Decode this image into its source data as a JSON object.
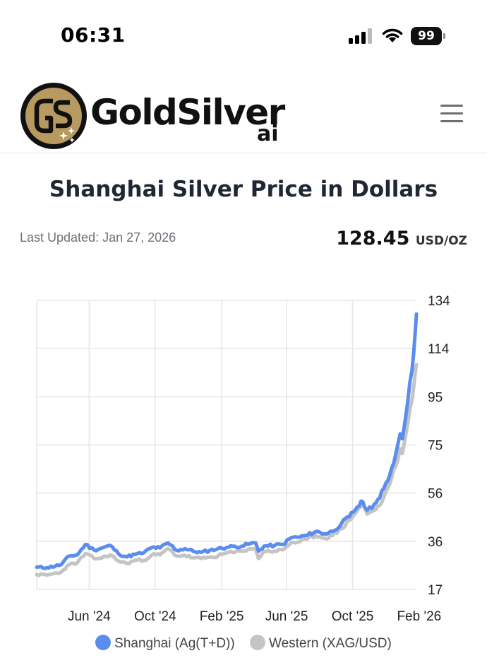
{
  "status_bar": {
    "time": "06:31",
    "battery": "99",
    "icons": [
      "signal-icon",
      "wifi-icon",
      "battery-icon"
    ]
  },
  "header": {
    "logo_text": "GoldSilver",
    "logo_sub": "ai",
    "menu_icon": "hamburger-menu-icon"
  },
  "page": {
    "title": "Shanghai Silver Price in Dollars",
    "last_updated": "Last Updated: Jan 27, 2026",
    "price_value": "128.45",
    "price_unit": "USD/OZ"
  },
  "colors": {
    "shanghai": "#5b8def",
    "western": "#c4c4c4",
    "grid": "#e6e6e6",
    "logo_gold": "#b79a5f"
  },
  "chart_data": {
    "type": "line",
    "y_axis_position": "right",
    "ylim": [
      17,
      134
    ],
    "yticks": [
      "134",
      "114",
      "95",
      "75",
      "56",
      "36",
      "17"
    ],
    "xlim": [
      "2024-02-25",
      "2026-01-27"
    ],
    "xticks": [
      {
        "label": "Jun '24",
        "date": "2024-06-01"
      },
      {
        "label": "Oct '24",
        "date": "2024-10-01"
      },
      {
        "label": "Feb '25",
        "date": "2025-02-01"
      },
      {
        "label": "Jun '25",
        "date": "2025-06-01"
      },
      {
        "label": "Oct '25",
        "date": "2025-10-01"
      },
      {
        "label": "Feb '26",
        "date": "2026-02-01"
      }
    ],
    "grid": true,
    "legend_position": "bottom",
    "series": [
      {
        "name": "Shanghai (Ag(T+D))",
        "points": [
          [
            "2024-02-25",
            26.0
          ],
          [
            "2024-03-15",
            25.8
          ],
          [
            "2024-04-10",
            27.0
          ],
          [
            "2024-04-25",
            30.5
          ],
          [
            "2024-05-10",
            31.0
          ],
          [
            "2024-05-25",
            35.2
          ],
          [
            "2024-06-10",
            33.0
          ],
          [
            "2024-06-25",
            33.8
          ],
          [
            "2024-07-10",
            34.8
          ],
          [
            "2024-07-25",
            31.5
          ],
          [
            "2024-08-10",
            30.2
          ],
          [
            "2024-08-25",
            31.2
          ],
          [
            "2024-09-10",
            31.8
          ],
          [
            "2024-09-25",
            34.0
          ],
          [
            "2024-10-10",
            33.8
          ],
          [
            "2024-10-25",
            35.8
          ],
          [
            "2024-11-10",
            32.8
          ],
          [
            "2024-11-25",
            33.5
          ],
          [
            "2024-12-10",
            32.5
          ],
          [
            "2024-12-25",
            32.0
          ],
          [
            "2025-01-10",
            32.8
          ],
          [
            "2025-01-25",
            33.5
          ],
          [
            "2025-02-10",
            34.0
          ],
          [
            "2025-02-25",
            34.5
          ],
          [
            "2025-03-10",
            34.5
          ],
          [
            "2025-03-25",
            35.5
          ],
          [
            "2025-04-05",
            35.8
          ],
          [
            "2025-04-10",
            32.5
          ],
          [
            "2025-04-20",
            34.5
          ],
          [
            "2025-05-10",
            34.8
          ],
          [
            "2025-05-25",
            35.2
          ],
          [
            "2025-06-10",
            38.0
          ],
          [
            "2025-06-25",
            38.2
          ],
          [
            "2025-07-10",
            39.0
          ],
          [
            "2025-07-25",
            40.5
          ],
          [
            "2025-08-10",
            39.5
          ],
          [
            "2025-08-25",
            40.5
          ],
          [
            "2025-09-10",
            43.5
          ],
          [
            "2025-09-25",
            46.5
          ],
          [
            "2025-10-10",
            50.5
          ],
          [
            "2025-10-20",
            52.5
          ],
          [
            "2025-10-28",
            49.0
          ],
          [
            "2025-11-10",
            51.5
          ],
          [
            "2025-11-20",
            54.0
          ],
          [
            "2025-11-28",
            58.0
          ],
          [
            "2025-12-05",
            61.0
          ],
          [
            "2025-12-12",
            66.0
          ],
          [
            "2025-12-20",
            72.0
          ],
          [
            "2025-12-28",
            80.0
          ],
          [
            "2026-01-01",
            78.0
          ],
          [
            "2026-01-06",
            85.0
          ],
          [
            "2026-01-11",
            93.0
          ],
          [
            "2026-01-15",
            101.0
          ],
          [
            "2026-01-19",
            106.0
          ],
          [
            "2026-01-22",
            113.0
          ],
          [
            "2026-01-25",
            122.0
          ],
          [
            "2026-01-27",
            128.45
          ]
        ]
      },
      {
        "name": "Western (XAG/USD)",
        "points": [
          [
            "2024-02-25",
            23.0
          ],
          [
            "2024-03-15",
            22.8
          ],
          [
            "2024-04-10",
            24.0
          ],
          [
            "2024-04-25",
            27.0
          ],
          [
            "2024-05-10",
            27.8
          ],
          [
            "2024-05-25",
            31.5
          ],
          [
            "2024-06-10",
            29.5
          ],
          [
            "2024-06-25",
            29.8
          ],
          [
            "2024-07-10",
            31.0
          ],
          [
            "2024-07-25",
            28.5
          ],
          [
            "2024-08-10",
            27.5
          ],
          [
            "2024-08-25",
            28.8
          ],
          [
            "2024-09-10",
            28.8
          ],
          [
            "2024-09-25",
            31.0
          ],
          [
            "2024-10-10",
            31.0
          ],
          [
            "2024-10-25",
            33.5
          ],
          [
            "2024-11-10",
            30.5
          ],
          [
            "2024-11-25",
            30.8
          ],
          [
            "2024-12-10",
            29.8
          ],
          [
            "2024-12-25",
            29.5
          ],
          [
            "2025-01-10",
            30.0
          ],
          [
            "2025-01-25",
            30.5
          ],
          [
            "2025-02-10",
            31.8
          ],
          [
            "2025-02-25",
            32.0
          ],
          [
            "2025-03-10",
            32.5
          ],
          [
            "2025-03-25",
            33.5
          ],
          [
            "2025-04-05",
            33.0
          ],
          [
            "2025-04-10",
            29.5
          ],
          [
            "2025-04-20",
            32.5
          ],
          [
            "2025-05-10",
            32.5
          ],
          [
            "2025-05-25",
            33.0
          ],
          [
            "2025-06-10",
            36.0
          ],
          [
            "2025-06-25",
            36.2
          ],
          [
            "2025-07-10",
            37.5
          ],
          [
            "2025-07-25",
            38.8
          ],
          [
            "2025-08-10",
            37.8
          ],
          [
            "2025-08-25",
            38.8
          ],
          [
            "2025-09-10",
            41.5
          ],
          [
            "2025-09-25",
            45.0
          ],
          [
            "2025-10-10",
            49.0
          ],
          [
            "2025-10-20",
            51.5
          ],
          [
            "2025-10-28",
            47.5
          ],
          [
            "2025-11-10",
            49.0
          ],
          [
            "2025-11-20",
            51.0
          ],
          [
            "2025-11-28",
            54.5
          ],
          [
            "2025-12-05",
            58.0
          ],
          [
            "2025-12-12",
            62.0
          ],
          [
            "2025-12-20",
            67.0
          ],
          [
            "2025-12-28",
            74.0
          ],
          [
            "2026-01-01",
            72.0
          ],
          [
            "2026-01-06",
            78.0
          ],
          [
            "2026-01-11",
            84.0
          ],
          [
            "2026-01-15",
            90.0
          ],
          [
            "2026-01-19",
            94.0
          ],
          [
            "2026-01-22",
            99.0
          ],
          [
            "2026-01-25",
            105.0
          ],
          [
            "2026-01-27",
            108.0
          ]
        ]
      }
    ]
  }
}
